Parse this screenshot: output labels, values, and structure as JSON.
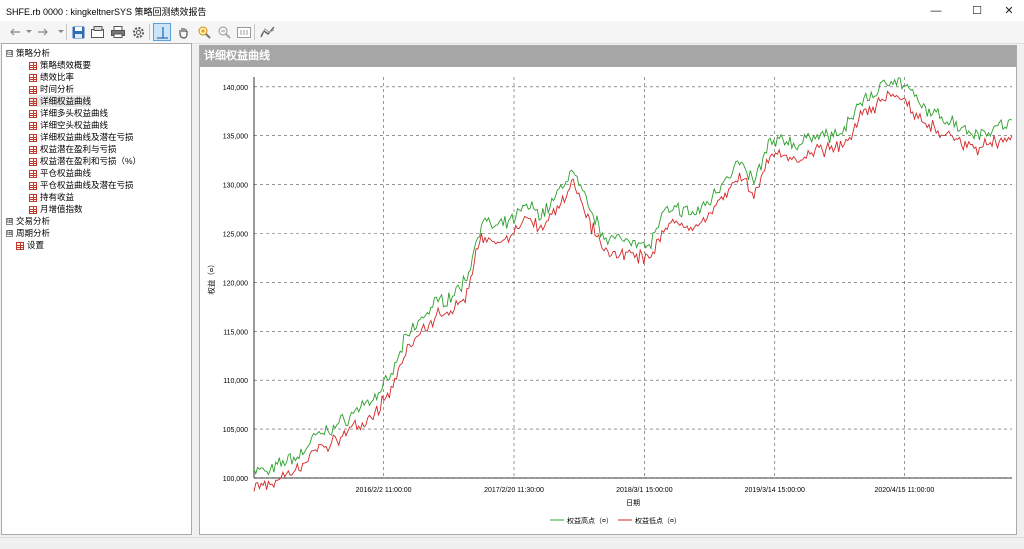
{
  "window": {
    "title": "SHFE.rb 0000 : kingkeltnerSYS 策略回测绩效报告",
    "minimize": "—",
    "maximize": "☐",
    "close": "✕"
  },
  "tree": {
    "groups": [
      {
        "label": "策略分析",
        "expand": "⊟",
        "items": [
          "策略绩效概要",
          "绩效比率",
          "时间分析",
          "详细权益曲线",
          "详细多头权益曲线",
          "详细空头权益曲线",
          "详细权益曲线及潜在亏损",
          "权益潜在盈利与亏损",
          "权益潜在盈利和亏损（%）",
          "平仓权益曲线",
          "平仓权益曲线及潜在亏损",
          "持有收益",
          "月增值指数"
        ]
      },
      {
        "label": "交易分析",
        "expand": "⊞"
      },
      {
        "label": "周期分析",
        "expand": "⊞"
      }
    ],
    "settings": "设置"
  },
  "panel": {
    "header": "详细权益曲线"
  },
  "chart_data": {
    "type": "line",
    "ylabel": "权益（¤）",
    "xlabel": "日期",
    "ylim": [
      100000,
      141000
    ],
    "yticks": [
      "100,000",
      "105,000",
      "110,000",
      "115,000",
      "120,000",
      "125,000",
      "130,000",
      "135,000",
      "140,000"
    ],
    "xticks": [
      "2016/2/2 11:00:00",
      "2017/2/20 11:30:00",
      "2018/3/1 15:00:00",
      "2019/3/14 15:00:00",
      "2020/4/15 11:00:00"
    ],
    "grid": true,
    "legend_position": "bottom",
    "series": [
      {
        "name": "权益高点（¤）",
        "color": "#2ca02c"
      },
      {
        "name": "权益低点（¤）",
        "color": "#d62728"
      }
    ],
    "x": [
      0,
      0.02,
      0.04,
      0.06,
      0.08,
      0.1,
      0.12,
      0.14,
      0.16,
      0.18,
      0.2,
      0.22,
      0.24,
      0.26,
      0.28,
      0.3,
      0.32,
      0.34,
      0.36,
      0.38,
      0.4,
      0.42,
      0.44,
      0.46,
      0.48,
      0.5,
      0.52,
      0.54,
      0.56,
      0.58,
      0.6,
      0.62,
      0.64,
      0.66,
      0.68,
      0.7,
      0.72,
      0.74,
      0.76,
      0.78,
      0.8,
      0.82,
      0.84,
      0.86,
      0.88,
      0.9,
      0.92,
      0.94,
      0.96,
      0.98,
      1.0
    ],
    "values": [
      100200,
      99800,
      101000,
      101500,
      103500,
      104200,
      105200,
      106500,
      107500,
      109500,
      113500,
      115500,
      117200,
      117800,
      119500,
      125500,
      124800,
      125500,
      127200,
      126200,
      128200,
      130800,
      127200,
      124200,
      123500,
      123800,
      122800,
      126200,
      126800,
      126200,
      127500,
      129800,
      131500,
      129500,
      133500,
      133800,
      133200,
      134500,
      134200,
      134800,
      137800,
      138600,
      140200,
      139300,
      137200,
      136300,
      135800,
      134800,
      134500,
      135200,
      135500
    ]
  },
  "legend_values": {
    "high_label": "权益高点（¤）",
    "low_label": "权益低点（¤）"
  }
}
